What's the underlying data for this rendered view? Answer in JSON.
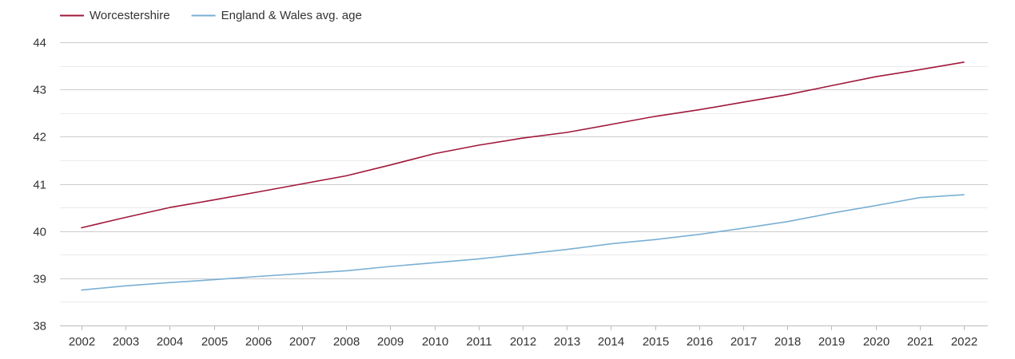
{
  "chart_data": {
    "type": "line",
    "title": "",
    "xlabel": "",
    "ylabel": "",
    "x": [
      2002,
      2003,
      2004,
      2005,
      2006,
      2007,
      2008,
      2009,
      2010,
      2011,
      2012,
      2013,
      2014,
      2015,
      2016,
      2017,
      2018,
      2019,
      2020,
      2021,
      2022
    ],
    "ylim": [
      38,
      44
    ],
    "yticks": [
      38,
      39,
      40,
      41,
      42,
      43,
      44
    ],
    "grid": true,
    "legend_position": "top-left",
    "series": [
      {
        "name": "Worcestershire",
        "color": "#a0183a",
        "values": [
          40.07,
          40.29,
          40.5,
          40.66,
          40.83,
          41.0,
          41.17,
          41.4,
          41.64,
          41.82,
          41.97,
          42.09,
          42.26,
          42.43,
          42.57,
          42.73,
          42.89,
          43.08,
          43.27,
          43.42,
          43.58
        ]
      },
      {
        "name": "England & Wales avg. age",
        "color": "#7aafd4",
        "values": [
          38.75,
          38.84,
          38.91,
          38.97,
          39.04,
          39.1,
          39.16,
          39.25,
          39.33,
          39.41,
          39.51,
          39.61,
          39.73,
          39.82,
          39.93,
          40.06,
          40.2,
          40.38,
          40.54,
          40.71,
          40.77
        ]
      }
    ]
  }
}
